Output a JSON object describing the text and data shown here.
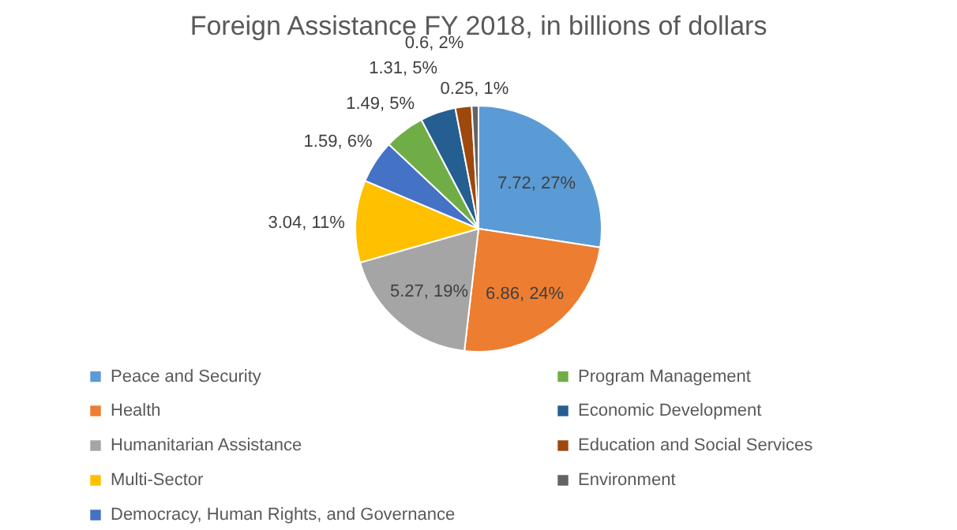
{
  "chart_data": {
    "type": "pie",
    "title": "Foreign Assistance FY 2018, in billions of dollars",
    "categories": [
      "Peace and Security",
      "Health",
      "Humanitarian Assistance",
      "Multi-Sector",
      "Democracy, Human Rights, and Governance",
      "Program Management",
      "Economic Development",
      "Education and Social Services",
      "Environment"
    ],
    "values": [
      7.72,
      6.86,
      5.27,
      3.04,
      1.59,
      1.49,
      1.31,
      0.6,
      0.25
    ],
    "colors": [
      "#5b9bd5",
      "#ed7d31",
      "#a5a5a5",
      "#ffc000",
      "#4472c4",
      "#70ad47",
      "#255e91",
      "#9e480e",
      "#636363"
    ],
    "value_labels": [
      "7.72, 27%",
      "6.86, 24%",
      "5.27, 19%",
      "3.04, 11%",
      "1.59, 6%",
      "1.49, 5%",
      "1.31, 5%",
      "0.6, 2%",
      "0.25, 1%"
    ],
    "legend": "bottom"
  }
}
